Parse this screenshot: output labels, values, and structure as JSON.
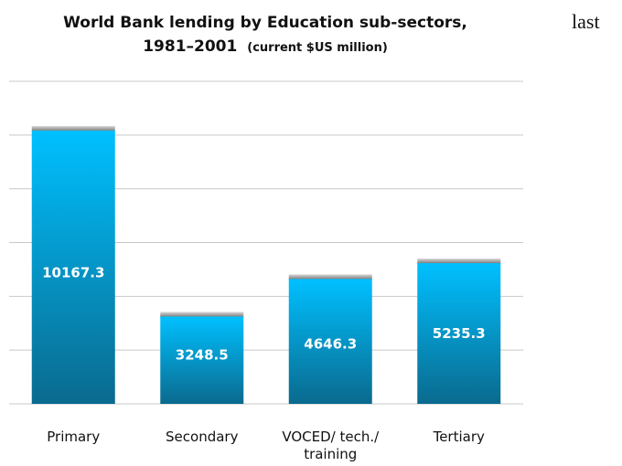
{
  "chart_data": {
    "type": "bar",
    "title_line1": "World Bank lending by Education sub-sectors,",
    "title_line2": "1981–2001",
    "title_unit": "(current $US million)",
    "categories": [
      [
        "Primary"
      ],
      [
        "Secondary"
      ],
      [
        "VOCED/ tech./",
        "training"
      ],
      [
        "Tertiary"
      ]
    ],
    "values": [
      10167.3,
      3248.5,
      4646.3,
      5235.3
    ],
    "value_labels": [
      "10167.3",
      "3248.5",
      "4646.3",
      "5235.3"
    ],
    "ylim": [
      0,
      12000
    ],
    "grid": true,
    "colors": {
      "bar_top": "#00c0ff",
      "bar_bottom": "#0a6a8e",
      "grid": "#c8c8c8"
    }
  },
  "side_note": "last"
}
